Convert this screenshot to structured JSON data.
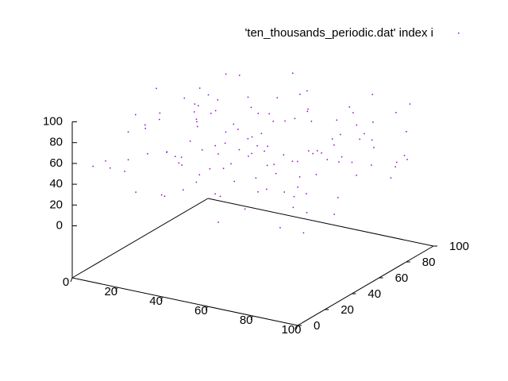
{
  "chart_data": {
    "type": "scatter3d",
    "series": [
      {
        "name": "'ten_thousands_periodic.dat' index i",
        "color": "#9400d3",
        "points": [
          [
            12,
            8,
            55
          ],
          [
            25,
            14,
            70
          ],
          [
            38,
            5,
            42
          ],
          [
            51,
            11,
            88
          ],
          [
            63,
            3,
            30
          ],
          [
            77,
            9,
            61
          ],
          [
            89,
            15,
            47
          ],
          [
            95,
            22,
            76
          ],
          [
            7,
            27,
            35
          ],
          [
            19,
            33,
            92
          ],
          [
            31,
            29,
            58
          ],
          [
            44,
            36,
            21
          ],
          [
            56,
            24,
            67
          ],
          [
            68,
            31,
            84
          ],
          [
            81,
            38,
            39
          ],
          [
            93,
            42,
            72
          ],
          [
            4,
            47,
            63
          ],
          [
            16,
            52,
            28
          ],
          [
            28,
            45,
            81
          ],
          [
            41,
            55,
            50
          ],
          [
            53,
            49,
            95
          ],
          [
            66,
            58,
            33
          ],
          [
            78,
            51,
            69
          ],
          [
            90,
            60,
            44
          ],
          [
            10,
            66,
            77
          ],
          [
            22,
            71,
            25
          ],
          [
            35,
            64,
            60
          ],
          [
            47,
            73,
            89
          ],
          [
            59,
            68,
            37
          ],
          [
            71,
            75,
            53
          ],
          [
            84,
            70,
            82
          ],
          [
            97,
            78,
            46
          ],
          [
            6,
            84,
            71
          ],
          [
            18,
            89,
            38
          ],
          [
            30,
            82,
            65
          ],
          [
            43,
            91,
            97
          ],
          [
            55,
            86,
            29
          ],
          [
            67,
            93,
            74
          ],
          [
            80,
            88,
            52
          ],
          [
            92,
            96,
            86
          ],
          [
            2,
            12,
            49
          ],
          [
            14,
            18,
            83
          ],
          [
            27,
            21,
            26
          ],
          [
            39,
            16,
            64
          ],
          [
            52,
            19,
            40
          ],
          [
            64,
            26,
            79
          ],
          [
            76,
            17,
            57
          ],
          [
            88,
            28,
            91
          ],
          [
            99,
            6,
            34
          ],
          [
            9,
            39,
            68
          ],
          [
            21,
            41,
            45
          ],
          [
            33,
            37,
            87
          ],
          [
            46,
            43,
            31
          ],
          [
            58,
            40,
            73
          ],
          [
            70,
            46,
            59
          ],
          [
            83,
            35,
            24
          ],
          [
            94,
            50,
            66
          ],
          [
            3,
            57,
            90
          ],
          [
            15,
            62,
            41
          ],
          [
            26,
            59,
            75
          ],
          [
            40,
            63,
            54
          ],
          [
            50,
            67,
            22
          ],
          [
            62,
            61,
            85
          ],
          [
            74,
            65,
            48
          ],
          [
            86,
            69,
            70
          ],
          [
            98,
            72,
            36
          ],
          [
            8,
            77,
            62
          ],
          [
            20,
            80,
            94
          ],
          [
            34,
            76,
            43
          ],
          [
            45,
            81,
            27
          ],
          [
            57,
            79,
            78
          ],
          [
            69,
            83,
            56
          ],
          [
            82,
            85,
            99
          ],
          [
            91,
            87,
            32
          ],
          [
            5,
            92,
            58
          ],
          [
            17,
            95,
            80
          ],
          [
            29,
            97,
            47
          ],
          [
            42,
            98,
            71
          ],
          [
            54,
            94,
            23
          ],
          [
            65,
            99,
            63
          ],
          [
            79,
            91,
            42
          ],
          [
            87,
            94,
            77
          ],
          [
            13,
            3,
            66
          ],
          [
            24,
            7,
            38
          ],
          [
            36,
            10,
            80
          ],
          [
            48,
            2,
            55
          ],
          [
            60,
            13,
            97
          ],
          [
            73,
            6,
            45
          ],
          [
            85,
            12,
            28
          ],
          [
            96,
            4,
            69
          ],
          [
            11,
            23,
            51
          ],
          [
            23,
            26,
            93
          ],
          [
            37,
            30,
            36
          ],
          [
            49,
            20,
            62
          ],
          [
            61,
            34,
            48
          ],
          [
            72,
            22,
            88
          ],
          [
            85,
            25,
            57
          ],
          [
            97,
            32,
            31
          ],
          [
            1,
            45,
            73
          ],
          [
            13,
            48,
            40
          ],
          [
            24,
            53,
            86
          ],
          [
            37,
            50,
            34
          ],
          [
            49,
            58,
            67
          ],
          [
            60,
            44,
            52
          ],
          [
            73,
            55,
            92
          ],
          [
            86,
            53,
            26
          ],
          [
            99,
            56,
            61
          ],
          [
            11,
            74,
            44
          ],
          [
            23,
            69,
            79
          ],
          [
            36,
            70,
            30
          ],
          [
            48,
            77,
            64
          ],
          [
            61,
            72,
            83
          ],
          [
            72,
            79,
            39
          ],
          [
            85,
            74,
            71
          ],
          [
            98,
            82,
            50
          ],
          [
            4,
            99,
            37
          ],
          [
            25,
            88,
            68
          ],
          [
            38,
            85,
            53
          ],
          [
            50,
            90,
            84
          ],
          [
            63,
            87,
            46
          ],
          [
            75,
            97,
            60
          ],
          [
            89,
            99,
            29
          ],
          [
            94,
            90,
            65
          ],
          [
            46,
            29,
            76
          ],
          [
            32,
            60,
            59
          ],
          [
            70,
            40,
            34
          ],
          [
            18,
            60,
            72
          ],
          [
            57,
            54,
            44
          ],
          [
            80,
            62,
            91
          ],
          [
            42,
            24,
            50
          ]
        ]
      }
    ],
    "xlim": [
      0,
      100
    ],
    "ylim": [
      0,
      100
    ],
    "zlim": [
      0,
      100
    ],
    "xticks": [
      0,
      20,
      40,
      60,
      80,
      100
    ],
    "yticks": [
      0,
      20,
      40,
      60,
      80,
      100
    ],
    "zticks": [
      0,
      20,
      40,
      60,
      80,
      100
    ]
  }
}
